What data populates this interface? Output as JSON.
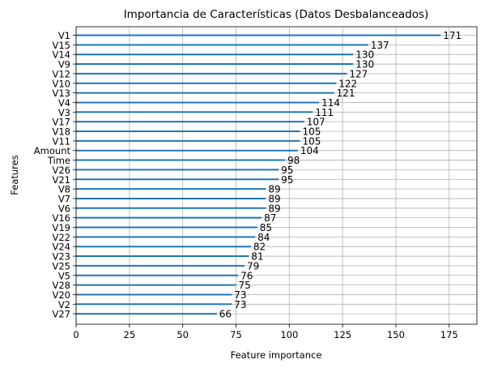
{
  "chart_data": {
    "type": "bar",
    "orientation": "horizontal",
    "title": "Importancia de Características (Datos Desbalanceados)",
    "xlabel": "Feature importance",
    "ylabel": "Features",
    "xlim": [
      0,
      188
    ],
    "xticks": [
      0,
      25,
      50,
      75,
      100,
      125,
      150,
      175
    ],
    "grid": true,
    "bar_color": "#1f77b4",
    "categories": [
      "V1",
      "V15",
      "V14",
      "V9",
      "V12",
      "V10",
      "V13",
      "V4",
      "V3",
      "V17",
      "V18",
      "V11",
      "Amount",
      "Time",
      "V26",
      "V21",
      "V8",
      "V7",
      "V6",
      "V16",
      "V19",
      "V22",
      "V24",
      "V23",
      "V25",
      "V5",
      "V28",
      "V20",
      "V2",
      "V27"
    ],
    "values": [
      171,
      137,
      130,
      130,
      127,
      122,
      121,
      114,
      111,
      107,
      105,
      105,
      104,
      98,
      95,
      95,
      89,
      89,
      89,
      87,
      85,
      84,
      82,
      81,
      79,
      76,
      75,
      73,
      73,
      66
    ]
  }
}
